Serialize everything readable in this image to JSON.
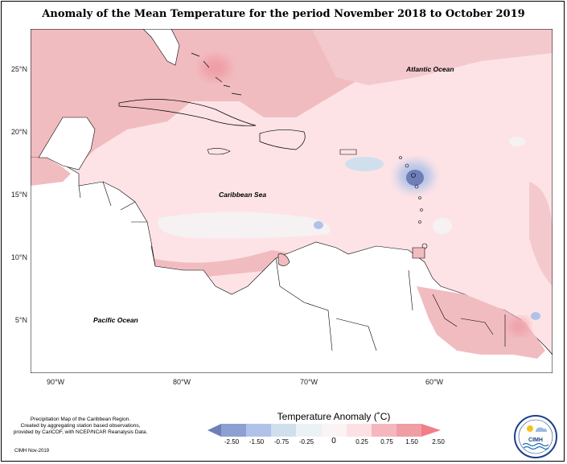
{
  "title": "Anomaly of the Mean Temperature for the period November 2018 to October 2019",
  "labels": {
    "atlantic": "Atlantic Ocean",
    "caribbean": "Caribbean Sea",
    "pacific": "Pacific Ocean"
  },
  "latitude_ticks": [
    "25°N",
    "20°N",
    "15°N",
    "10°N",
    "5°N"
  ],
  "longitude_ticks": [
    "90°W",
    "80°W",
    "70°W",
    "60°W"
  ],
  "legend": {
    "title": "Temperature Anomaly (˚C)",
    "ticks": [
      "-2.50",
      "-1.50",
      "-0.75",
      "-0.25",
      "0",
      "0.25",
      "0.75",
      "1.50",
      "2.50"
    ],
    "colors": [
      "#6e7fb8",
      "#8ea0d2",
      "#b0c2e8",
      "#cfe0ec",
      "#f2f7f9",
      "#fde0e4",
      "#f4b7bd",
      "#ef9ea6",
      "#f07f88"
    ]
  },
  "credit": {
    "line1": "Precipitation Map of the Caribbean Region.",
    "line2": "Created by aggregating station based observations,",
    "line3": "provided by CariCOF, with NCEP/NCAR Reanalysis Data.",
    "date": "CIMH Nov-2019"
  },
  "logo": {
    "text": "CIMH",
    "icon": "cimh-logo-icon"
  }
}
